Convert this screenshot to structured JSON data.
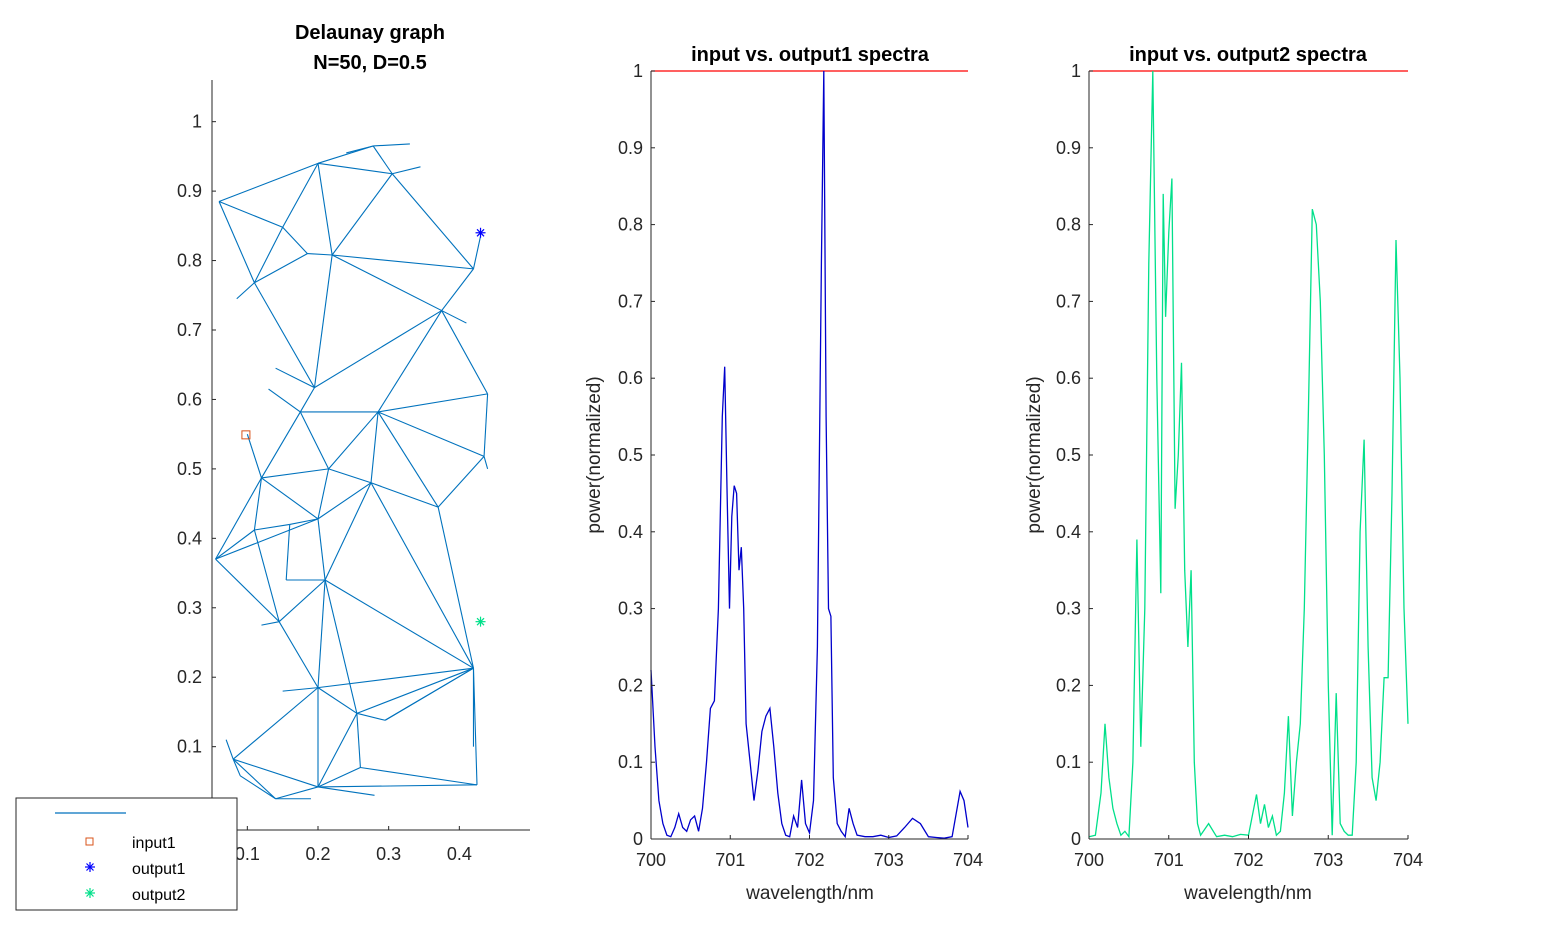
{
  "chart_data": [
    {
      "type": "network",
      "title": "Delaunay graph",
      "subtitle": "N=50, D=0.5",
      "xlim": [
        0.05,
        0.5
      ],
      "ylim": [
        -0.02,
        1.06
      ],
      "xticks": [
        0.1,
        0.2,
        0.3,
        0.4
      ],
      "xtick_labels": [
        "0.1",
        "0.2",
        "0.3",
        "0.4"
      ],
      "yticks": [
        0,
        0.1,
        0.2,
        0.3,
        0.4,
        0.5,
        0.6,
        0.7,
        0.8,
        0.9,
        1
      ],
      "ytick_labels": [
        "0",
        "0.1",
        "0.2",
        "0.3",
        "0.4",
        "0.5",
        "0.6",
        "0.7",
        "0.8",
        "0.9",
        "1"
      ],
      "edge_color": "#0072BD",
      "nodes": [
        [
          0.06,
          0.885
        ],
        [
          0.2,
          0.94
        ],
        [
          0.278,
          0.965
        ],
        [
          0.305,
          0.925
        ],
        [
          0.15,
          0.848
        ],
        [
          0.185,
          0.81
        ],
        [
          0.22,
          0.808
        ],
        [
          0.11,
          0.768
        ],
        [
          0.42,
          0.788
        ],
        [
          0.375,
          0.728
        ],
        [
          0.195,
          0.617
        ],
        [
          0.44,
          0.608
        ],
        [
          0.175,
          0.582
        ],
        [
          0.285,
          0.582
        ],
        [
          0.435,
          0.518
        ],
        [
          0.12,
          0.487
        ],
        [
          0.215,
          0.5
        ],
        [
          0.275,
          0.48
        ],
        [
          0.37,
          0.445
        ],
        [
          0.2,
          0.428
        ],
        [
          0.055,
          0.37
        ],
        [
          0.11,
          0.412
        ],
        [
          0.16,
          0.42
        ],
        [
          0.155,
          0.34
        ],
        [
          0.21,
          0.34
        ],
        [
          0.145,
          0.28
        ],
        [
          0.42,
          0.213
        ],
        [
          0.2,
          0.185
        ],
        [
          0.255,
          0.148
        ],
        [
          0.08,
          0.082
        ],
        [
          0.2,
          0.042
        ],
        [
          0.26,
          0.07
        ],
        [
          0.425,
          0.045
        ],
        [
          0.09,
          0.058
        ],
        [
          0.14,
          0.025
        ],
        [
          0.295,
          0.138
        ],
        [
          0.235,
          0.385
        ],
        [
          0.07,
          0.098
        ],
        [
          0.115,
          0.018
        ],
        [
          0.425,
          0.1
        ]
      ],
      "edges": [
        [
          0,
          1
        ],
        [
          0,
          4
        ],
        [
          0,
          7
        ],
        [
          1,
          2
        ],
        [
          1,
          3
        ],
        [
          1,
          6
        ],
        [
          1,
          4
        ],
        [
          2,
          3
        ],
        [
          3,
          8
        ],
        [
          3,
          6
        ],
        [
          4,
          5
        ],
        [
          5,
          6
        ],
        [
          4,
          7
        ],
        [
          5,
          7
        ],
        [
          6,
          8
        ],
        [
          6,
          9
        ],
        [
          8,
          9
        ],
        [
          7,
          10
        ],
        [
          6,
          10
        ],
        [
          10,
          9
        ],
        [
          9,
          11
        ],
        [
          9,
          13
        ],
        [
          11,
          13
        ],
        [
          11,
          14
        ],
        [
          13,
          14
        ],
        [
          10,
          12
        ],
        [
          12,
          13
        ],
        [
          12,
          16
        ],
        [
          13,
          16
        ],
        [
          12,
          15
        ],
        [
          15,
          16
        ],
        [
          13,
          17
        ],
        [
          16,
          17
        ],
        [
          17,
          18
        ],
        [
          13,
          18
        ],
        [
          14,
          18
        ],
        [
          15,
          19
        ],
        [
          16,
          19
        ],
        [
          17,
          19
        ],
        [
          15,
          21
        ],
        [
          15,
          20
        ],
        [
          20,
          21
        ],
        [
          21,
          22
        ],
        [
          19,
          22
        ],
        [
          19,
          20
        ],
        [
          22,
          23
        ],
        [
          23,
          24
        ],
        [
          19,
          24
        ],
        [
          24,
          25
        ],
        [
          20,
          25
        ],
        [
          21,
          25
        ],
        [
          24,
          17
        ],
        [
          18,
          26
        ],
        [
          24,
          26
        ],
        [
          17,
          26
        ],
        [
          25,
          27
        ],
        [
          24,
          27
        ],
        [
          24,
          28
        ],
        [
          26,
          27
        ],
        [
          26,
          28
        ],
        [
          27,
          28
        ],
        [
          27,
          29
        ],
        [
          29,
          30
        ],
        [
          27,
          30
        ],
        [
          28,
          30
        ],
        [
          28,
          31
        ],
        [
          30,
          31
        ],
        [
          26,
          32
        ],
        [
          26,
          35
        ],
        [
          31,
          32
        ],
        [
          30,
          32
        ],
        [
          29,
          33
        ],
        [
          33,
          34
        ],
        [
          29,
          34
        ],
        [
          30,
          34
        ],
        [
          28,
          35
        ],
        [
          35,
          26
        ]
      ],
      "edge_stubs": [
        [
          0.305,
          0.925,
          0.345,
          0.935
        ],
        [
          0.278,
          0.965,
          0.24,
          0.955
        ],
        [
          0.278,
          0.965,
          0.33,
          0.968
        ],
        [
          0.11,
          0.768,
          0.085,
          0.745
        ],
        [
          0.375,
          0.728,
          0.41,
          0.71
        ],
        [
          0.42,
          0.788,
          0.43,
          0.835
        ],
        [
          0.12,
          0.487,
          0.1,
          0.55
        ],
        [
          0.145,
          0.28,
          0.12,
          0.275
        ],
        [
          0.2,
          0.185,
          0.15,
          0.18
        ],
        [
          0.42,
          0.213,
          0.42,
          0.1
        ],
        [
          0.08,
          0.082,
          0.07,
          0.11
        ],
        [
          0.2,
          0.042,
          0.28,
          0.03
        ],
        [
          0.14,
          0.025,
          0.19,
          0.025
        ],
        [
          0.195,
          0.617,
          0.14,
          0.645
        ],
        [
          0.175,
          0.582,
          0.13,
          0.615
        ],
        [
          0.435,
          0.518,
          0.44,
          0.5
        ]
      ],
      "markers": [
        {
          "name": "input1",
          "x": 0.098,
          "y": 0.549,
          "symbol": "square",
          "color": "#D95319"
        },
        {
          "name": "output1",
          "x": 0.43,
          "y": 0.84,
          "symbol": "asterisk",
          "color": "#0000FF"
        },
        {
          "name": "output2",
          "x": 0.43,
          "y": 0.28,
          "symbol": "asterisk",
          "color": "#00E08A"
        }
      ],
      "legend": {
        "placement": "bottom-left",
        "entries": [
          {
            "label": "",
            "symbol": "line",
            "color": "#0072BD"
          },
          {
            "label": "input1",
            "symbol": "square",
            "color": "#D95319"
          },
          {
            "label": "output1",
            "symbol": "asterisk",
            "color": "#0000FF"
          },
          {
            "label": "output2",
            "symbol": "asterisk",
            "color": "#00E08A"
          }
        ]
      }
    },
    {
      "type": "line",
      "title": "input vs. output1 spectra",
      "xlabel": "wavelength/nm",
      "ylabel": "power(normalized)",
      "xlim": [
        700,
        704
      ],
      "ylim": [
        0,
        1
      ],
      "xticks": [
        700,
        701,
        702,
        703,
        704
      ],
      "xtick_labels": [
        "700",
        "701",
        "702",
        "703",
        "704"
      ],
      "yticks": [
        0,
        0.1,
        0.2,
        0.3,
        0.4,
        0.5,
        0.6,
        0.7,
        0.8,
        0.9,
        1
      ],
      "ytick_labels": [
        "0",
        "0.1",
        "0.2",
        "0.3",
        "0.4",
        "0.5",
        "0.6",
        "0.7",
        "0.8",
        "0.9",
        "1"
      ],
      "series": [
        {
          "role": "input",
          "color": "#FF0000",
          "x": [
            700,
            704
          ],
          "y": [
            1,
            1
          ]
        },
        {
          "role": "output1",
          "color": "#0000CC",
          "x": [
            700,
            700.05,
            700.1,
            700.15,
            700.2,
            700.25,
            700.3,
            700.35,
            700.4,
            700.45,
            700.5,
            700.55,
            700.6,
            700.65,
            700.7,
            700.75,
            700.8,
            700.85,
            700.9,
            700.93,
            700.96,
            700.99,
            701.02,
            701.05,
            701.08,
            701.11,
            701.14,
            701.17,
            701.2,
            701.25,
            701.3,
            701.35,
            701.4,
            701.45,
            701.5,
            701.55,
            701.6,
            701.65,
            701.7,
            701.75,
            701.8,
            701.85,
            701.9,
            701.95,
            702,
            702.05,
            702.1,
            702.15,
            702.18,
            702.21,
            702.24,
            702.27,
            702.3,
            702.35,
            702.4,
            702.45,
            702.5,
            702.55,
            702.6,
            702.7,
            702.8,
            702.9,
            703,
            703.1,
            703.2,
            703.3,
            703.4,
            703.5,
            703.6,
            703.7,
            703.8,
            703.9,
            703.95,
            704
          ],
          "y": [
            0.22,
            0.12,
            0.05,
            0.02,
            0.005,
            0.003,
            0.015,
            0.033,
            0.015,
            0.01,
            0.025,
            0.03,
            0.01,
            0.04,
            0.1,
            0.17,
            0.18,
            0.3,
            0.55,
            0.615,
            0.45,
            0.3,
            0.42,
            0.46,
            0.45,
            0.35,
            0.38,
            0.3,
            0.15,
            0.1,
            0.05,
            0.09,
            0.14,
            0.16,
            0.17,
            0.12,
            0.06,
            0.02,
            0.005,
            0.003,
            0.03,
            0.015,
            0.077,
            0.02,
            0.008,
            0.05,
            0.25,
            0.75,
            1.0,
            0.55,
            0.3,
            0.29,
            0.08,
            0.02,
            0.01,
            0.003,
            0.04,
            0.02,
            0.005,
            0.003,
            0.003,
            0.005,
            0.002,
            0.004,
            0.015,
            0.027,
            0.02,
            0.003,
            0.002,
            0.001,
            0.003,
            0.062,
            0.05,
            0.015
          ]
        }
      ]
    },
    {
      "type": "line",
      "title": "input vs. output2 spectra",
      "xlabel": "wavelength/nm",
      "ylabel": "power(normalized)",
      "xlim": [
        700,
        704
      ],
      "ylim": [
        0,
        1
      ],
      "xticks": [
        700,
        701,
        702,
        703,
        704
      ],
      "xtick_labels": [
        "700",
        "701",
        "702",
        "703",
        "704"
      ],
      "yticks": [
        0,
        0.1,
        0.2,
        0.3,
        0.4,
        0.5,
        0.6,
        0.7,
        0.8,
        0.9,
        1
      ],
      "ytick_labels": [
        "0",
        "0.1",
        "0.2",
        "0.3",
        "0.4",
        "0.5",
        "0.6",
        "0.7",
        "0.8",
        "0.9",
        "1"
      ],
      "series": [
        {
          "role": "input",
          "color": "#FF0000",
          "x": [
            700,
            704
          ],
          "y": [
            1,
            1
          ]
        },
        {
          "role": "output2",
          "color": "#00E08A",
          "x": [
            700,
            700.08,
            700.15,
            700.2,
            700.25,
            700.3,
            700.35,
            700.4,
            700.45,
            700.5,
            700.55,
            700.6,
            700.65,
            700.7,
            700.75,
            700.8,
            700.85,
            700.9,
            700.93,
            700.96,
            701,
            701.04,
            701.08,
            701.12,
            701.16,
            701.2,
            701.24,
            701.28,
            701.32,
            701.36,
            701.4,
            701.5,
            701.6,
            701.7,
            701.8,
            701.9,
            702,
            702.1,
            702.15,
            702.2,
            702.25,
            702.3,
            702.35,
            702.4,
            702.45,
            702.5,
            702.55,
            702.6,
            702.65,
            702.7,
            702.75,
            702.8,
            702.85,
            702.9,
            702.95,
            703,
            703.05,
            703.1,
            703.15,
            703.2,
            703.25,
            703.3,
            703.35,
            703.4,
            703.45,
            703.5,
            703.55,
            703.6,
            703.65,
            703.7,
            703.75,
            703.8,
            703.85,
            703.9,
            703.95,
            704
          ],
          "y": [
            0.003,
            0.005,
            0.06,
            0.15,
            0.08,
            0.04,
            0.02,
            0.005,
            0.01,
            0.003,
            0.1,
            0.39,
            0.12,
            0.3,
            0.75,
            1.0,
            0.6,
            0.32,
            0.84,
            0.68,
            0.79,
            0.86,
            0.43,
            0.5,
            0.62,
            0.35,
            0.25,
            0.35,
            0.1,
            0.02,
            0.005,
            0.02,
            0.003,
            0.005,
            0.003,
            0.006,
            0.005,
            0.058,
            0.02,
            0.045,
            0.015,
            0.03,
            0.005,
            0.01,
            0.06,
            0.16,
            0.03,
            0.1,
            0.15,
            0.3,
            0.55,
            0.82,
            0.8,
            0.7,
            0.5,
            0.2,
            0.005,
            0.19,
            0.02,
            0.01,
            0.005,
            0.005,
            0.1,
            0.4,
            0.52,
            0.25,
            0.08,
            0.05,
            0.1,
            0.21,
            0.21,
            0.45,
            0.78,
            0.6,
            0.3,
            0.15
          ]
        }
      ]
    }
  ]
}
